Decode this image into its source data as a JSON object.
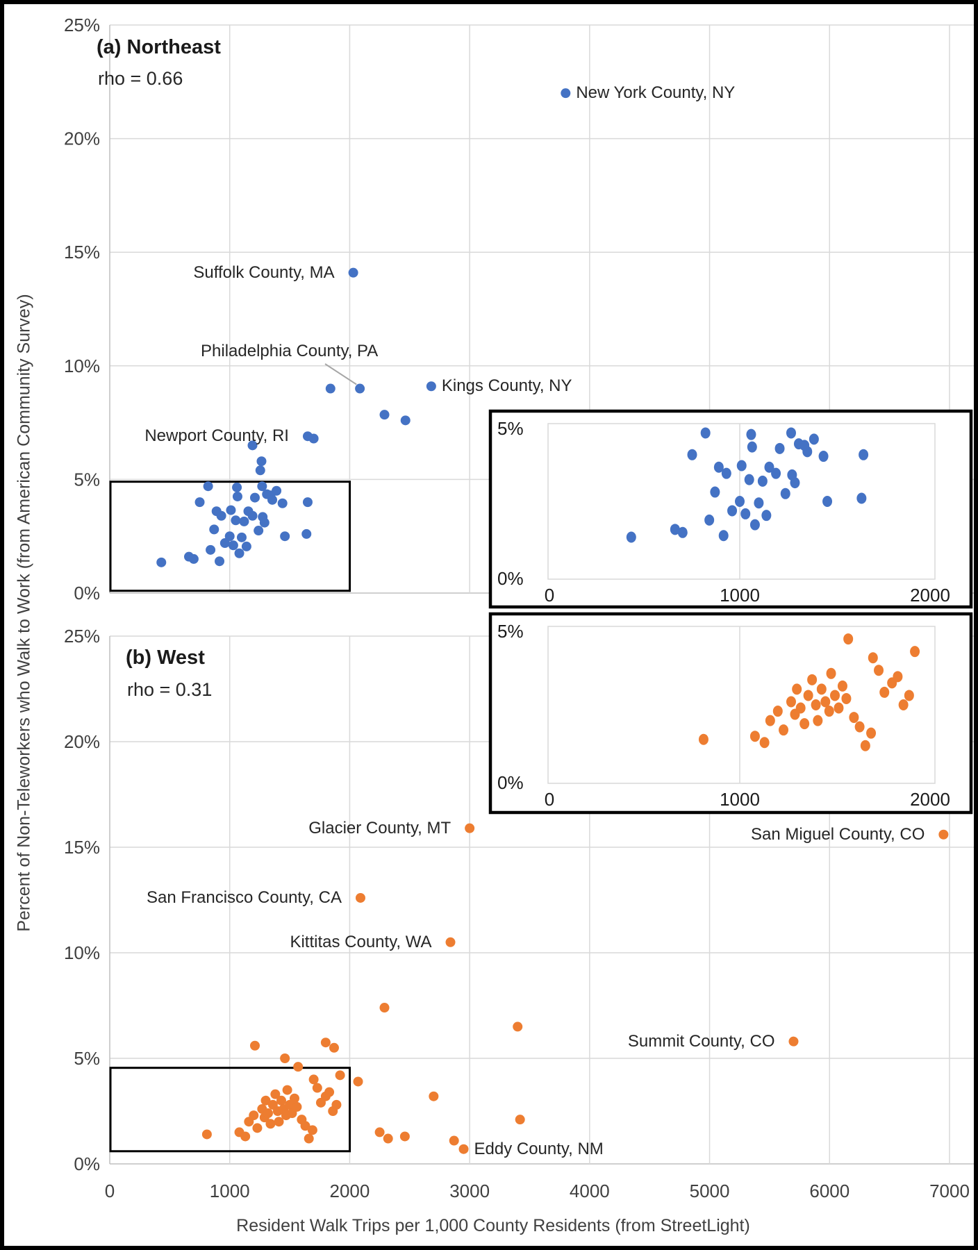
{
  "figure": {
    "x_axis_title": "Resident Walk Trips per 1,000 County Residents (from StreetLight)",
    "y_axis_title": "Percent of Non-Teleworkers who Walk to Work (from American Community Survey)",
    "x_ticks": [
      "0",
      "1000",
      "2000",
      "3000",
      "4000",
      "5000",
      "6000",
      "7000"
    ],
    "y_ticks": [
      "25%",
      "20%",
      "15%",
      "10%",
      "5%",
      "0%"
    ],
    "colors": {
      "northeast": "#4472C4",
      "west": "#ED7D31",
      "gridline": "#D9D9D9",
      "axis_line": "#BFBFBF",
      "tick_text": "#404040",
      "box_border": "#000000",
      "leader_line": "#A6A6A6"
    }
  },
  "chart_data": [
    {
      "type": "scatter",
      "panel": "a",
      "title": "(a) Northeast",
      "rho_label": "rho = 0.66",
      "rho": 0.66,
      "series_color": "#4472C4",
      "xlabel": "Resident Walk Trips per 1,000 County Residents (from StreetLight)",
      "ylabel": "Percent of Non-Teleworkers who Walk to Work (from American Community Survey)",
      "xlim": [
        0,
        7000
      ],
      "ylim_pct": [
        0,
        25
      ],
      "grid": true,
      "labeled_points": [
        {
          "label": "New York County, NY",
          "x": 3800,
          "y_pct": 22.0,
          "side": "right"
        },
        {
          "label": "Suffolk County, MA",
          "x": 2030,
          "y_pct": 14.1,
          "side": "left"
        },
        {
          "label": "Philadelphia County, PA",
          "x": 2085,
          "y_pct": 9.0,
          "side": "leader"
        },
        {
          "label": "Kings County, NY",
          "x": 2680,
          "y_pct": 9.1,
          "side": "right"
        },
        {
          "label": "Newport County, RI",
          "x": 1650,
          "y_pct": 6.9,
          "side": "left"
        }
      ],
      "points": [
        [
          1840,
          9.0
        ],
        [
          2290,
          7.85
        ],
        [
          2465,
          7.6
        ],
        [
          1700,
          6.8
        ],
        [
          1190,
          6.5
        ],
        [
          1265,
          5.8
        ],
        [
          1255,
          5.4
        ]
      ],
      "cluster_points": [
        [
          430,
          1.35
        ],
        [
          660,
          1.6
        ],
        [
          700,
          1.5
        ],
        [
          750,
          4.0
        ],
        [
          820,
          4.7
        ],
        [
          840,
          1.9
        ],
        [
          870,
          2.8
        ],
        [
          890,
          3.6
        ],
        [
          915,
          1.4
        ],
        [
          930,
          3.4
        ],
        [
          960,
          2.2
        ],
        [
          1000,
          2.5
        ],
        [
          1010,
          3.65
        ],
        [
          1030,
          2.1
        ],
        [
          1050,
          3.2
        ],
        [
          1060,
          4.65
        ],
        [
          1065,
          4.25
        ],
        [
          1080,
          1.75
        ],
        [
          1100,
          2.45
        ],
        [
          1120,
          3.15
        ],
        [
          1140,
          2.05
        ],
        [
          1155,
          3.6
        ],
        [
          1190,
          3.4
        ],
        [
          1210,
          4.2
        ],
        [
          1240,
          2.75
        ],
        [
          1270,
          4.7
        ],
        [
          1275,
          3.35
        ],
        [
          1290,
          3.1
        ],
        [
          1310,
          4.35
        ],
        [
          1340,
          4.3
        ],
        [
          1355,
          4.1
        ],
        [
          1390,
          4.5
        ],
        [
          1440,
          3.95
        ],
        [
          1460,
          2.5
        ],
        [
          1640,
          2.6
        ],
        [
          1650,
          4.0
        ]
      ],
      "zoom_box": {
        "x": [
          0,
          1995
        ],
        "y_pct": [
          0.1,
          4.9
        ]
      },
      "inset": {
        "x_ticks": [
          "0",
          "1000",
          "2000"
        ],
        "y_labels": [
          "5%",
          "0%"
        ],
        "x_range": [
          0,
          2000
        ],
        "y_range_pct": [
          0,
          5
        ]
      }
    },
    {
      "type": "scatter",
      "panel": "b",
      "title": "(b) West",
      "rho_label": "rho = 0.31",
      "rho": 0.31,
      "series_color": "#ED7D31",
      "xlabel": "Resident Walk Trips per 1,000 County Residents (from StreetLight)",
      "ylabel": "Percent of Non-Teleworkers who Walk to Work (from American Community Survey)",
      "xlim": [
        0,
        7000
      ],
      "ylim_pct": [
        0,
        25
      ],
      "grid": true,
      "labeled_points": [
        {
          "label": "Glacier County, MT",
          "x": 3000,
          "y_pct": 15.9,
          "side": "left"
        },
        {
          "label": "San Miguel County, CO",
          "x": 6950,
          "y_pct": 15.6,
          "side": "left"
        },
        {
          "label": "San Francisco County, CA",
          "x": 2090,
          "y_pct": 12.6,
          "side": "left"
        },
        {
          "label": "Kittitas County, WA",
          "x": 2840,
          "y_pct": 10.5,
          "side": "left"
        },
        {
          "label": "Summit County, CO",
          "x": 5700,
          "y_pct": 5.8,
          "side": "left"
        },
        {
          "label": "Eddy County, NM",
          "x": 2950,
          "y_pct": 0.7,
          "side": "right"
        }
      ],
      "points": [
        [
          2290,
          7.4
        ],
        [
          3400,
          6.5
        ],
        [
          1210,
          5.6
        ],
        [
          1800,
          5.75
        ],
        [
          1870,
          5.5
        ],
        [
          1460,
          5.0
        ],
        [
          2070,
          3.9
        ],
        [
          2250,
          1.5
        ],
        [
          2320,
          1.2
        ],
        [
          2460,
          1.3
        ],
        [
          2700,
          3.2
        ],
        [
          2870,
          1.1
        ],
        [
          3420,
          2.1
        ]
      ],
      "cluster_points": [
        [
          810,
          1.4
        ],
        [
          1080,
          1.5
        ],
        [
          1130,
          1.3
        ],
        [
          1160,
          2.0
        ],
        [
          1200,
          2.3
        ],
        [
          1230,
          1.7
        ],
        [
          1270,
          2.6
        ],
        [
          1290,
          2.2
        ],
        [
          1300,
          3.0
        ],
        [
          1320,
          2.4
        ],
        [
          1340,
          1.9
        ],
        [
          1360,
          2.8
        ],
        [
          1380,
          3.3
        ],
        [
          1400,
          2.5
        ],
        [
          1410,
          2.0
        ],
        [
          1430,
          3.0
        ],
        [
          1450,
          2.6
        ],
        [
          1470,
          2.3
        ],
        [
          1480,
          3.5
        ],
        [
          1500,
          2.8
        ],
        [
          1520,
          2.4
        ],
        [
          1540,
          3.1
        ],
        [
          1560,
          2.7
        ],
        [
          1570,
          4.6
        ],
        [
          1600,
          2.1
        ],
        [
          1630,
          1.8
        ],
        [
          1660,
          1.2
        ],
        [
          1690,
          1.6
        ],
        [
          1700,
          4.0
        ],
        [
          1730,
          3.6
        ],
        [
          1760,
          2.9
        ],
        [
          1800,
          3.2
        ],
        [
          1830,
          3.4
        ],
        [
          1860,
          2.5
        ],
        [
          1890,
          2.8
        ],
        [
          1920,
          4.2
        ]
      ],
      "zoom_box": {
        "x": [
          0,
          1995
        ],
        "y_pct": [
          0.6,
          4.55
        ]
      },
      "inset": {
        "x_ticks": [
          "0",
          "1000",
          "2000"
        ],
        "y_labels": [
          "5%",
          "0%"
        ],
        "x_range": [
          0,
          2000
        ],
        "y_range_pct": [
          0,
          5
        ]
      }
    }
  ]
}
